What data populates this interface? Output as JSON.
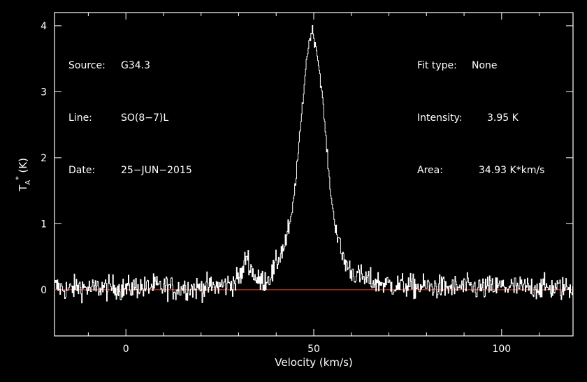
{
  "header_left": [
    {
      "label": "Source:",
      "value": "G34.3"
    },
    {
      "label": "Line:",
      "value": "SO(8−7)L"
    },
    {
      "label": "Date:",
      "value": "25−JUN−2015"
    }
  ],
  "header_right": {
    "fit": {
      "label": "Fit type:",
      "value": "None"
    },
    "intensity": {
      "label": "Intensity:",
      "value": "3.95 K"
    },
    "area": {
      "label": "Area:",
      "value": "34.93 K*km/s"
    }
  },
  "colors": {
    "background": "#000000",
    "spectrum": "#ffffff",
    "baseline": "#c0392b",
    "axes": "#ffffff"
  },
  "chart_data": {
    "type": "line",
    "title": "",
    "xlabel": "Velocity (km/s)",
    "ylabel": "T*A (K)",
    "xlim": [
      -19,
      119
    ],
    "ylim": [
      -0.7,
      4.2
    ],
    "xticks": [
      0,
      50,
      100
    ],
    "yticks": [
      0,
      1,
      2,
      3,
      4
    ],
    "grid": false,
    "baseline_y": 0,
    "series": [
      {
        "values_note_free": true,
        "x": [
          -19,
          -17,
          -15,
          -13,
          -11,
          -9,
          -7,
          -5,
          -3,
          -1,
          1,
          3,
          5,
          7,
          9,
          11,
          13,
          15,
          17,
          19,
          21,
          23,
          25,
          27,
          29,
          31,
          32,
          33,
          35,
          37,
          39,
          40,
          41,
          42,
          43,
          44,
          45,
          46,
          47,
          48,
          49,
          49.5,
          50,
          50.5,
          51,
          52,
          53,
          54,
          55,
          56,
          57,
          58,
          59,
          60,
          62,
          64,
          66,
          68,
          70,
          72,
          74,
          76,
          78,
          80,
          85,
          90,
          95,
          100,
          105,
          110,
          115,
          119
        ],
        "y": [
          0.05,
          0.02,
          0.0,
          0.05,
          0.03,
          0.0,
          0.04,
          0.02,
          0.05,
          0.0,
          0.03,
          0.05,
          0.02,
          0.06,
          0.03,
          0.05,
          0.0,
          0.04,
          0.03,
          0.02,
          0.05,
          0.04,
          0.06,
          0.08,
          0.12,
          0.25,
          0.55,
          0.35,
          0.12,
          0.15,
          0.25,
          0.4,
          0.55,
          0.65,
          0.85,
          1.1,
          1.6,
          2.2,
          2.85,
          3.5,
          3.85,
          3.95,
          3.8,
          3.7,
          3.5,
          3.05,
          2.4,
          1.7,
          1.2,
          0.9,
          0.6,
          0.45,
          0.35,
          0.28,
          0.2,
          0.15,
          0.12,
          0.1,
          0.08,
          0.06,
          0.07,
          0.05,
          0.04,
          0.05,
          0.03,
          0.04,
          0.02,
          0.05,
          0.03,
          0.04,
          0.02,
          0.03
        ]
      }
    ]
  }
}
